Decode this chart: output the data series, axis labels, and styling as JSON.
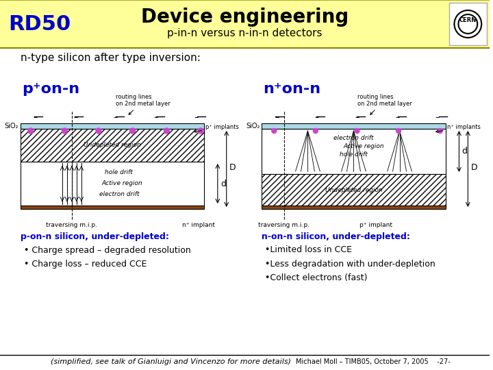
{
  "title": "Device engineering",
  "subtitle": "p-in-n versus n-in-n detectors",
  "rd50_text": "RD50",
  "header_bg": "#FFFF99",
  "section_title": "n-type silicon after type inversion:",
  "left_label": "p⁺on-n",
  "right_label": "n⁺on-n",
  "left_underline_label": "p-on-n silicon, under-depleted:",
  "right_underline_label": "n-on-n silicon, under-depleted:",
  "left_bullets": [
    "Charge spread – degraded resolution",
    "Charge loss – reduced CCE"
  ],
  "right_bullets": [
    "Limited loss in CCE",
    "Less degradation with under-depletion",
    "Collect electrons (fast)"
  ],
  "footer_text": "(simplified, see talk of Gianluigi and Vincenzo for more details)",
  "footer_right": "Michael Moll – TIMB05, October 7, 2005    -27-",
  "bg_color": "#FFFFFF",
  "blue_label_color": "#0000CC",
  "rd50_color": "#0000CC"
}
